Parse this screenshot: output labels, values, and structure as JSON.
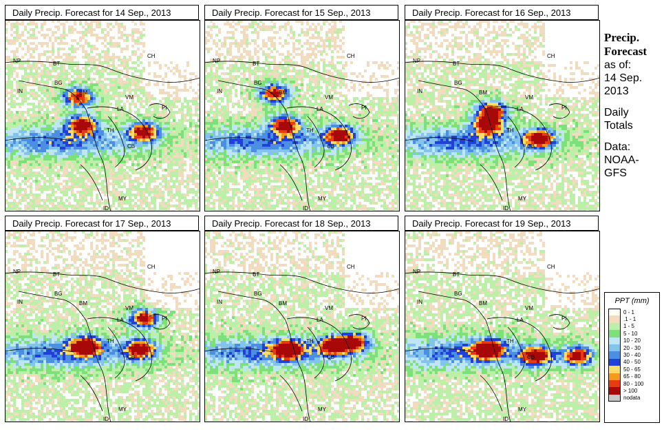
{
  "panels": [
    {
      "title": "Daily Precip. Forecast for  14 Sep., 2013"
    },
    {
      "title": "Daily Precip. Forecast for  15 Sep., 2013"
    },
    {
      "title": "Daily Precip. Forecast for  16 Sep., 2013"
    },
    {
      "title": "Daily Precip. Forecast for  17 Sep., 2013"
    },
    {
      "title": "Daily Precip. Forecast for  18 Sep., 2013"
    },
    {
      "title": "Daily Precip. Forecast for  19 Sep., 2013"
    }
  ],
  "country_labels": [
    "NP",
    "BT",
    "BG",
    "IN",
    "BM",
    "CH",
    "VM",
    "LA",
    "TH",
    "CB",
    "MY",
    "ID",
    "PI"
  ],
  "sidebar": {
    "title_line1": "Precip.",
    "title_line2": "Forecast",
    "asof_line1": "as of:",
    "asof_line2": "14 Sep.",
    "asof_line3": "2013",
    "totals_line1": "Daily",
    "totals_line2": "Totals",
    "data_line1": "Data:",
    "data_line2": "NOAA-",
    "data_line3": "GFS"
  },
  "legend": {
    "title": "PPT (mm)",
    "items": [
      {
        "label": "0 - 1",
        "color": "#fdfdf6"
      },
      {
        "label": ".1 - 1",
        "color": "#f2dcc0"
      },
      {
        "label": "1 - 5",
        "color": "#bcf0a8"
      },
      {
        "label": "5 - 10",
        "color": "#7ee07a"
      },
      {
        "label": "10 - 20",
        "color": "#bfe6f5"
      },
      {
        "label": "20 - 30",
        "color": "#84c4ec"
      },
      {
        "label": "30 - 40",
        "color": "#4a8fe2"
      },
      {
        "label": "40 - 50",
        "color": "#2040d8"
      },
      {
        "label": "50 - 65",
        "color": "#f8dd6a"
      },
      {
        "label": "65 - 80",
        "color": "#f69a1c"
      },
      {
        "label": "80 - 100",
        "color": "#e63c10"
      },
      {
        "label": "> 100",
        "color": "#a80808"
      },
      {
        "label": "nodata",
        "color": "#c8c8c8"
      }
    ]
  }
}
